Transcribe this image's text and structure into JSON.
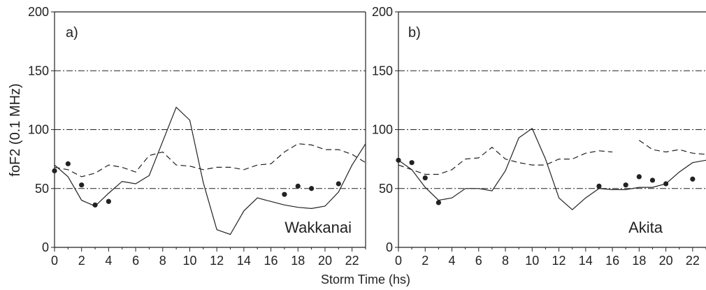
{
  "chart_data": [
    {
      "type": "line",
      "panel_label": "a)",
      "station": "Wakkanai",
      "ylabel": "foF2 (0.1 MHz)",
      "xlabel": "Storm Time (hs)",
      "xlim": [
        0,
        23
      ],
      "ylim": [
        0,
        200
      ],
      "x_ticks": [
        "0",
        "2",
        "4",
        "6",
        "8",
        "10",
        "12",
        "14",
        "16",
        "18",
        "20",
        "22"
      ],
      "y_ticks": [
        "0",
        "50",
        "100",
        "150",
        "200"
      ],
      "grid": "dash-dot horizontal lines at 50, 100, 150",
      "series": [
        {
          "style": "solid",
          "x": [
            0,
            1,
            2,
            3,
            4,
            5,
            6,
            7,
            8,
            9,
            10,
            11,
            12,
            13,
            14,
            15,
            16,
            17,
            18,
            19,
            20,
            21,
            22,
            23
          ],
          "y": [
            70,
            60,
            40,
            35,
            46,
            56,
            54,
            61,
            90,
            119,
            108,
            55,
            15,
            11,
            31,
            42,
            39,
            36,
            34,
            33,
            35,
            47,
            70,
            88
          ]
        },
        {
          "style": "dashed",
          "x": [
            0,
            1,
            2,
            3,
            4,
            5,
            6,
            7,
            8,
            9,
            10,
            11,
            12,
            13,
            14,
            15,
            16,
            17,
            18,
            19,
            20,
            21,
            22,
            23
          ],
          "y": [
            68,
            66,
            60,
            63,
            70,
            68,
            64,
            78,
            81,
            70,
            69,
            66,
            68,
            68,
            66,
            70,
            71,
            81,
            88,
            87,
            83,
            83,
            79,
            72
          ]
        },
        {
          "style": "dots",
          "x": [
            0,
            1,
            2,
            3,
            4,
            17,
            18,
            19,
            21
          ],
          "y": [
            65,
            71,
            53,
            36,
            39,
            45,
            52,
            50,
            54
          ]
        }
      ]
    },
    {
      "type": "line",
      "panel_label": "b)",
      "station": "Akita",
      "xlim": [
        0,
        23
      ],
      "ylim": [
        0,
        200
      ],
      "x_ticks": [
        "0",
        "2",
        "4",
        "6",
        "8",
        "10",
        "12",
        "14",
        "16",
        "18",
        "20",
        "22"
      ],
      "y_ticks": [
        "0",
        "50",
        "100",
        "150",
        "200"
      ],
      "grid": "dash-dot horizontal lines at 50, 100, 150",
      "series": [
        {
          "style": "solid",
          "x": [
            0,
            1,
            2,
            3,
            4,
            5,
            6,
            7,
            8,
            9,
            10,
            11,
            12,
            13,
            14,
            15,
            16,
            17,
            18,
            19,
            20,
            21,
            22,
            23
          ],
          "y": [
            74,
            66,
            51,
            40,
            42,
            50,
            50,
            48,
            65,
            93,
            101,
            75,
            42,
            32,
            42,
            50,
            49,
            49,
            51,
            51,
            54,
            64,
            72,
            74
          ]
        },
        {
          "style": "dashed",
          "x": [
            0,
            1,
            2,
            3,
            4,
            5,
            6,
            7,
            8,
            9,
            10,
            11,
            12,
            13,
            14,
            15,
            16
          ],
          "y": [
            70,
            66,
            62,
            62,
            66,
            75,
            76,
            85,
            75,
            72,
            70,
            70,
            75,
            75,
            80,
            82,
            81
          ]
        },
        {
          "style": "dashed",
          "x": [
            18,
            19,
            20,
            21,
            22,
            23
          ],
          "y": [
            91,
            83,
            81,
            83,
            80,
            79
          ]
        },
        {
          "style": "dots",
          "x": [
            0,
            1,
            2,
            3,
            15,
            17,
            18,
            19,
            20,
            22
          ],
          "y": [
            74,
            72,
            59,
            38,
            52,
            53,
            60,
            57,
            54,
            58
          ]
        }
      ]
    }
  ]
}
